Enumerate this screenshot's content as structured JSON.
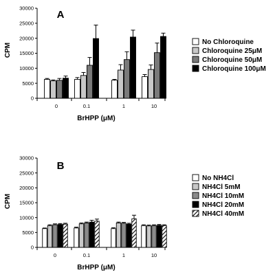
{
  "chart_data": [
    {
      "type": "bar",
      "panel_label": "A",
      "ylabel": "CPM",
      "xlabel": "BrHPP (μM)",
      "ylim": [
        0,
        30000
      ],
      "yticks": [
        0,
        5000,
        10000,
        15000,
        20000,
        25000,
        30000
      ],
      "categories": [
        "0",
        "0.1",
        "1",
        "10"
      ],
      "grid": false,
      "legend_position": "right",
      "series": [
        {
          "name": "No Chloroquine",
          "fill": "#ffffff",
          "values": [
            6300,
            6300,
            6000,
            7200
          ],
          "errors": [
            300,
            600,
            300,
            700
          ]
        },
        {
          "name": "Chloroquine 25μM",
          "fill": "#c8c8c8",
          "values": [
            5800,
            7600,
            9400,
            9600
          ],
          "errors": [
            300,
            1000,
            1800,
            1500
          ]
        },
        {
          "name": "Chloroquine 50μM",
          "fill": "#7a7a7a",
          "values": [
            6000,
            11000,
            12900,
            15200
          ],
          "errors": [
            600,
            2600,
            2600,
            3200
          ]
        },
        {
          "name": "Chloroquine 100μM",
          "fill": "#000000",
          "values": [
            6700,
            19900,
            20400,
            20600
          ],
          "errors": [
            700,
            4500,
            2300,
            1100
          ]
        }
      ]
    },
    {
      "type": "bar",
      "panel_label": "B",
      "ylabel": "CPM",
      "xlabel": "BrHPP (μM)",
      "ylim": [
        0,
        30000
      ],
      "yticks": [
        0,
        5000,
        10000,
        15000,
        20000,
        25000,
        30000
      ],
      "categories": [
        "0",
        "0.1",
        "1",
        "10"
      ],
      "grid": false,
      "legend_position": "right",
      "series": [
        {
          "name": "No NH4Cl",
          "fill": "#ffffff",
          "values": [
            6300,
            6500,
            6300,
            7300
          ],
          "errors": [
            200,
            300,
            300,
            300
          ]
        },
        {
          "name": "NH4Cl 5mM",
          "fill": "#c8c8c8",
          "values": [
            7300,
            7900,
            8200,
            7200
          ],
          "errors": [
            300,
            300,
            300,
            300
          ]
        },
        {
          "name": "NH4Cl 10mM",
          "fill": "#8a8a8a",
          "values": [
            7600,
            8200,
            8100,
            7300
          ],
          "errors": [
            300,
            300,
            300,
            300
          ]
        },
        {
          "name": "NH4Cl 20mM",
          "fill": "#000000",
          "values": [
            7700,
            8500,
            7800,
            7400
          ],
          "errors": [
            300,
            600,
            300,
            300
          ]
        },
        {
          "name": "NH4Cl 40mM",
          "fill": "hatch",
          "values": [
            7800,
            8800,
            9600,
            7300
          ],
          "errors": [
            300,
            700,
            1200,
            300
          ]
        }
      ]
    }
  ]
}
